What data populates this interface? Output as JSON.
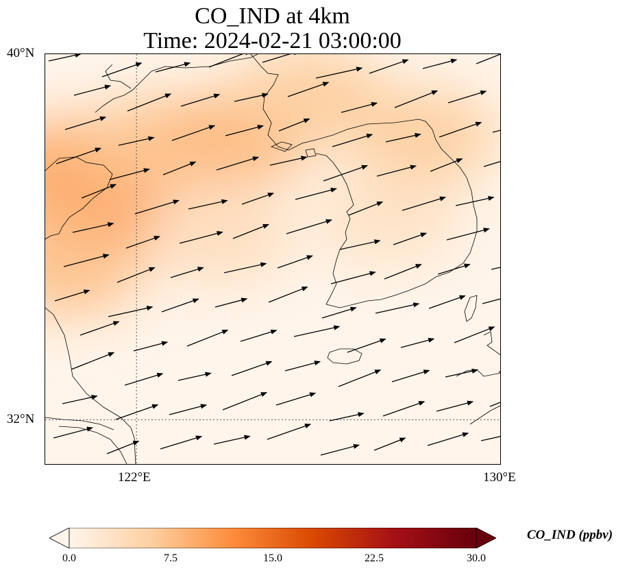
{
  "title_line1": "CO_IND at 4km",
  "title_line2": "Time: 2024-02-21 03:00:00",
  "colors": {
    "colormap": [
      "#fff5eb",
      "#fdd0a2",
      "#fd8d3c",
      "#d94801",
      "#a50f15",
      "#67000d"
    ],
    "coastline": "#000000",
    "wind_arrow": "#000000",
    "gridline": "#555555"
  },
  "map": {
    "lat_ticks": [
      "40°N",
      "32°N"
    ],
    "lon_ticks": [
      "122°E",
      "130°E"
    ],
    "extent": {
      "lon_min": 120,
      "lon_max": 130,
      "lat_min": 31,
      "lat_max": 40
    },
    "gridlines": {
      "lon": 122,
      "lat": 32
    }
  },
  "field_hotspots": [
    {
      "lon": 121.0,
      "lat": 36.6,
      "value": 11.0
    },
    {
      "lon": 120.5,
      "lat": 37.5,
      "value": 9.0
    },
    {
      "lon": 122.5,
      "lat": 38.0,
      "value": 7.0
    },
    {
      "lon": 124.3,
      "lat": 38.2,
      "value": 8.0
    },
    {
      "lon": 125.8,
      "lat": 39.1,
      "value": 6.0
    },
    {
      "lon": 128.3,
      "lat": 38.2,
      "value": 6.0
    },
    {
      "lon": 123.8,
      "lat": 36.0,
      "value": 3.5
    },
    {
      "lon": 120.5,
      "lat": 35.3,
      "value": 7.0
    },
    {
      "lon": 127.5,
      "lat": 36.4,
      "value": 3.0
    }
  ],
  "wind": {
    "direction_deg_from_east": 17
  },
  "colorbar": {
    "label": "CO_IND (ppbv)",
    "min": 0,
    "max": 30,
    "ticks": [
      "0.0",
      "7.5",
      "15.0",
      "22.5",
      "30.0"
    ],
    "extend": "both"
  }
}
